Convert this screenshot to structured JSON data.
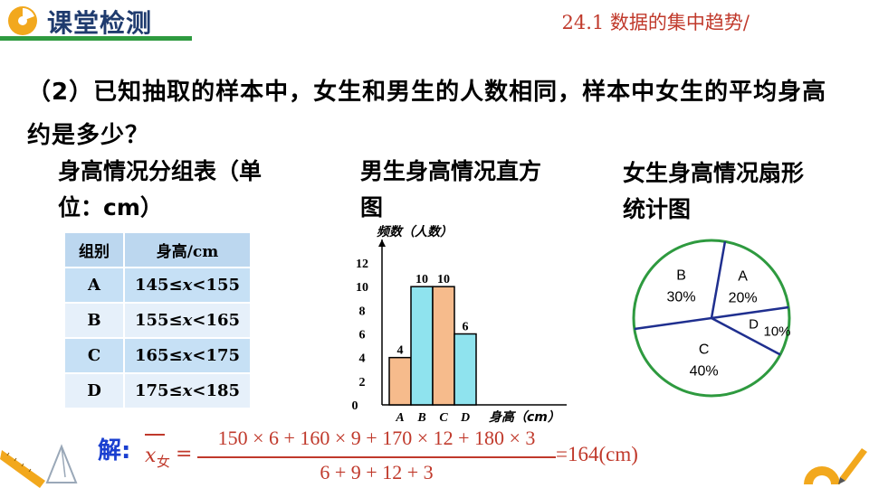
{
  "header": {
    "title": "课堂检测",
    "chapter": "24.1  数据的集中趋势/"
  },
  "question": {
    "text": "（2）已知抽取的样本中，女生和男生的人数相同，样本中女生的平均身高约是多少？"
  },
  "table": {
    "caption": "身高情况分组表（单位：cm）",
    "headers": [
      "组别",
      "身高/cm"
    ],
    "rows": [
      {
        "group": "A",
        "range_prefix": "145≤",
        "var": "x",
        "range_suffix": "<155"
      },
      {
        "group": "B",
        "range_prefix": "155≤",
        "var": "x",
        "range_suffix": "<165"
      },
      {
        "group": "C",
        "range_prefix": "165≤",
        "var": "x",
        "range_suffix": "<175"
      },
      {
        "group": "D",
        "range_prefix": "175≤",
        "var": "x",
        "range_suffix": "<185"
      }
    ]
  },
  "chart_data": [
    {
      "type": "bar",
      "title": "男生身高情况直方图",
      "ylabel": "频数（人数）",
      "xlabel": "身高（cm）",
      "categories": [
        "A",
        "B",
        "C",
        "D"
      ],
      "values": [
        4,
        10,
        10,
        6
      ],
      "colors": [
        "#f6bb8c",
        "#8fe3ee",
        "#f6bb8c",
        "#8fe3ee"
      ],
      "yticks": [
        0,
        2,
        4,
        6,
        8,
        10,
        12
      ],
      "ylim": [
        0,
        12
      ]
    },
    {
      "type": "pie",
      "title": "女生身高情况扇形统计图",
      "slices": [
        {
          "label": "A",
          "value": 20,
          "text": "20%"
        },
        {
          "label": "B",
          "value": 30,
          "text": "30%"
        },
        {
          "label": "C",
          "value": 40,
          "text": "40%"
        },
        {
          "label": "D",
          "value": 10,
          "text": "10%"
        }
      ],
      "circle_color": "#2e9a3f",
      "divider_color": "#1f2f8f"
    }
  ],
  "solution": {
    "label": "解:",
    "var": "x",
    "sub": "女",
    "eq": "=",
    "numerator": "150 × 6 + 160 × 9 + 170 × 12 + 180 × 3",
    "denominator": "6 + 9 + 12 + 3",
    "result": "=164(cm)"
  },
  "colors": {
    "title": "#1f3b6e",
    "chapter": "#c0392b",
    "accent_green": "#2e9a3f",
    "solution_label": "#1a3fd0",
    "formula": "#c0392b"
  }
}
